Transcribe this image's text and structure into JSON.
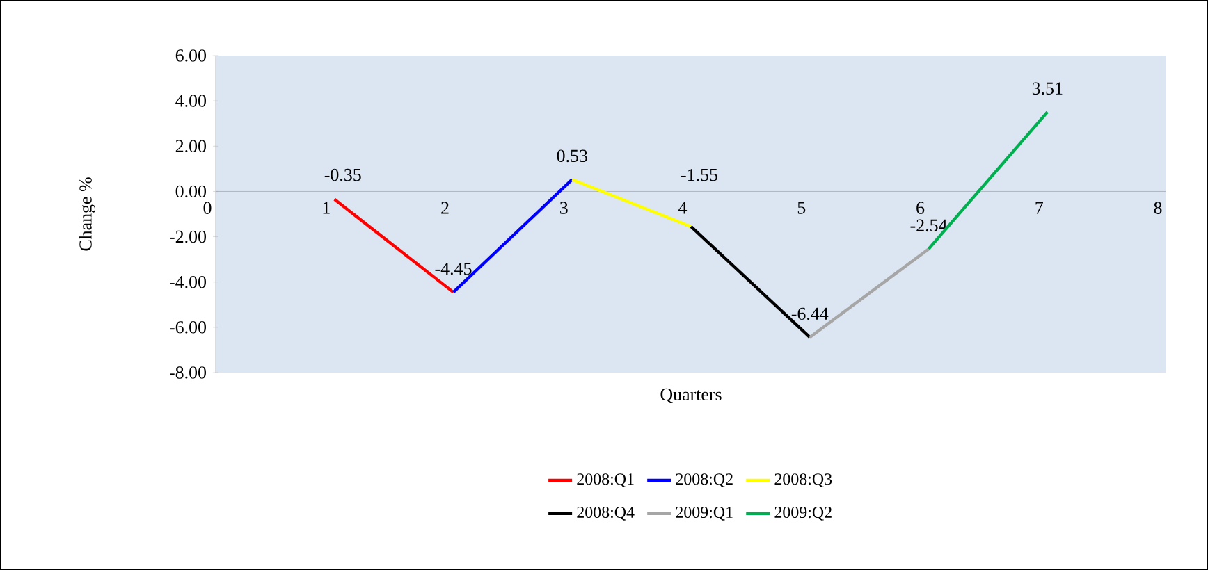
{
  "chart_data": {
    "type": "line",
    "xlabel": "Quarters",
    "ylabel": "Change %",
    "xlim": [
      0,
      8
    ],
    "xticks": [
      0,
      1,
      2,
      3,
      4,
      5,
      6,
      7,
      8
    ],
    "ylim": [
      -8,
      6
    ],
    "yticks": [
      {
        "value": -8,
        "label": "-8.00"
      },
      {
        "value": -6,
        "label": "-6.00"
      },
      {
        "value": -4,
        "label": "-4.00"
      },
      {
        "value": -2,
        "label": "-2.00"
      },
      {
        "value": 0,
        "label": "0.00"
      },
      {
        "value": 2,
        "label": "2.00"
      },
      {
        "value": 4,
        "label": "4.00"
      },
      {
        "value": 6,
        "label": "6.00"
      }
    ],
    "grid": false,
    "legend": "bottom",
    "marker": "none",
    "line_style": "solid",
    "series": [
      {
        "name": "2008:Q1",
        "color": "#ff0000",
        "x": [
          1,
          2
        ],
        "values": [
          -0.35,
          -4.45
        ],
        "value_labels": [
          "-0.35",
          "-4.45"
        ]
      },
      {
        "name": "2008:Q2",
        "color": "#0000ff",
        "x": [
          2,
          3
        ],
        "values": [
          -4.45,
          0.53
        ],
        "value_labels": [
          null,
          "0.53"
        ]
      },
      {
        "name": "2008:Q3",
        "color": "#ffff00",
        "x": [
          3,
          4
        ],
        "values": [
          0.53,
          -1.55
        ],
        "value_labels": [
          null,
          "-1.55"
        ]
      },
      {
        "name": "2008:Q4",
        "color": "#000000",
        "x": [
          4,
          5
        ],
        "values": [
          -1.55,
          -6.44
        ],
        "value_labels": [
          null,
          "-6.44"
        ]
      },
      {
        "name": "2009:Q1",
        "color": "#a6a6a6",
        "x": [
          5,
          6
        ],
        "values": [
          -6.44,
          -2.54
        ],
        "value_labels": [
          null,
          "-2.54"
        ]
      },
      {
        "name": "2009:Q2",
        "color": "#00b050",
        "x": [
          6,
          7
        ],
        "values": [
          -2.54,
          3.51
        ],
        "value_labels": [
          null,
          "3.51"
        ]
      }
    ]
  }
}
